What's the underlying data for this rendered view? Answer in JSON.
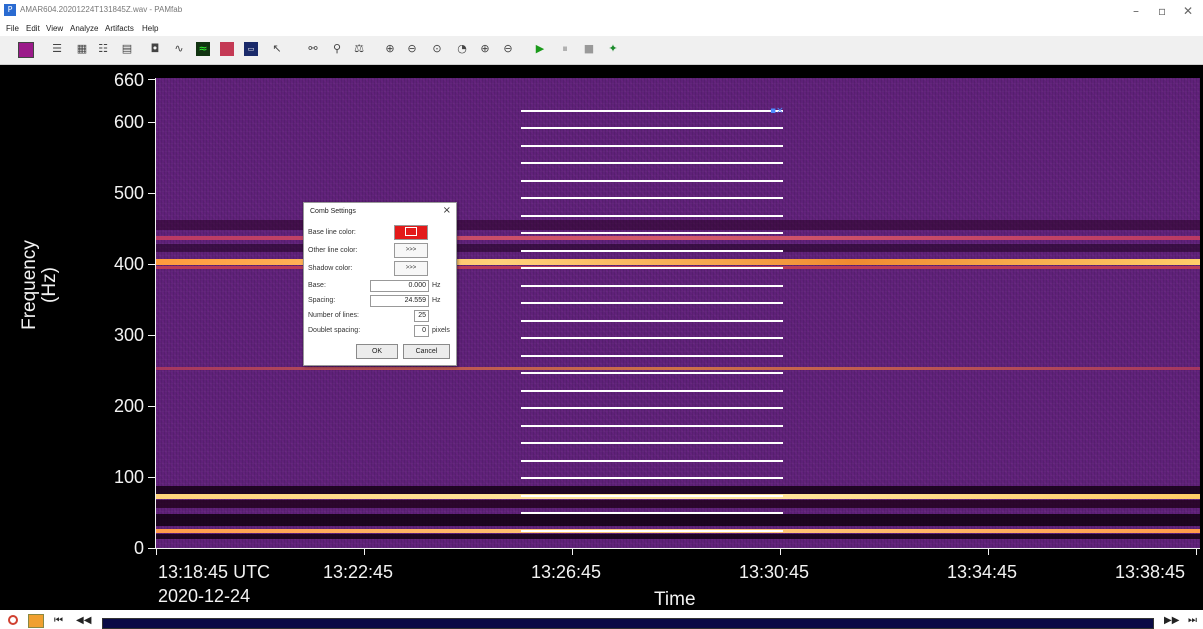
{
  "window": {
    "title": "AMAR604.20201224T131845Z.wav - PAMfab",
    "minimize": "–",
    "restore": "▫",
    "close": "✕"
  },
  "menu": [
    {
      "label": "File"
    },
    {
      "label": "Edit"
    },
    {
      "label": "View"
    },
    {
      "label": "Analyze"
    },
    {
      "label": "Artifacts"
    },
    {
      "label": "Help"
    }
  ],
  "toolbar": {
    "icons": [
      "colormap-icon",
      "filter-icon",
      "grid-icon",
      "list-icon",
      "layers-icon",
      "camera-icon",
      "curve-icon",
      "spectrum-icon",
      "waveform-icon",
      "data-icon",
      "pointer-icon",
      "link-icon",
      "pin-icon",
      "balance-icon",
      "zoom-in-icon",
      "zoom-out-icon",
      "zoom-fit-icon",
      "zoom-prev-icon",
      "zoom-time-in-icon",
      "zoom-time-out-icon",
      "play-icon",
      "pause-icon",
      "stop-icon",
      "marker-icon"
    ]
  },
  "spectrogram": {
    "y_axis": {
      "label_line1": "Frequency",
      "label_line2": "(Hz)",
      "min": 0,
      "max": 660,
      "ticks": [
        "0",
        "100",
        "200",
        "300",
        "400",
        "500",
        "600",
        "660"
      ]
    },
    "x_axis": {
      "label": "Time",
      "date": "2020-12-24",
      "ticks": [
        "13:18:45 UTC",
        "13:22:45",
        "13:26:45",
        "13:30:45",
        "13:34:45",
        "13:38:45"
      ]
    },
    "comb": {
      "base_hz": 0,
      "spacing_hz": 24.559,
      "lines": 25,
      "handle_marker": "▪×"
    }
  },
  "dialog": {
    "title": "Comb Settings",
    "close": "×",
    "base_line_color_label": "Base line color:",
    "base_line_color": "#e31a1a",
    "other_line_color_label": "Other line color:",
    "other_line_color_btn": ">>>",
    "shadow_color_label": "Shadow color:",
    "shadow_color_btn": ">>>",
    "base_label": "Base:",
    "base_value": "0.000",
    "base_unit": "Hz",
    "spacing_label": "Spacing:",
    "spacing_value": "24.559",
    "spacing_unit": "Hz",
    "num_lines_label": "Number of lines:",
    "num_lines_value": "25",
    "doublet_label": "Doublet spacing:",
    "doublet_value": "0",
    "doublet_unit": "pixels",
    "ok": "OK",
    "cancel": "Cancel"
  },
  "nav": {
    "first": "⏮",
    "prev": "◀◀",
    "next": "▶▶",
    "last": "⏭"
  }
}
